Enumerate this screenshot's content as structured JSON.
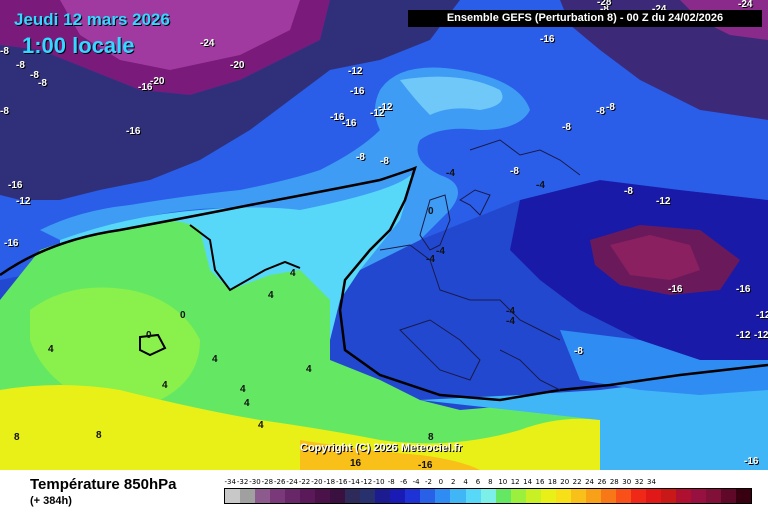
{
  "header": {
    "date": "Jeudi 12 mars 2026",
    "time": "1:00 locale",
    "model": "Ensemble GEFS  (Perturbation 8)  -  00 Z du 24/02/2026"
  },
  "footer": {
    "variable": "Température 850hPa",
    "lead": "(+ 384h)",
    "copyright": "Copyright (C) 2026 Meteociel.fr"
  },
  "scale": {
    "labels": [
      "-34",
      "-32",
      "-30",
      "-28",
      "-26",
      "-24",
      "-22",
      "-20",
      "-18",
      "-16",
      "-14",
      "-12",
      "-10",
      "-8",
      "-6",
      "-4",
      "-2",
      "0",
      "2",
      "4",
      "6",
      "8",
      "10",
      "12",
      "14",
      "16",
      "18",
      "20",
      "22",
      "24",
      "26",
      "28",
      "30",
      "32",
      "34"
    ],
    "colors": [
      "#c8c8c8",
      "#a0a0a0",
      "#8c5a8c",
      "#7a3a7a",
      "#682868",
      "#5a1a5a",
      "#4a1248",
      "#3a1040",
      "#2e2a5a",
      "#28306e",
      "#1c1c90",
      "#1a1ab4",
      "#1e32d6",
      "#2860e8",
      "#2e8cf2",
      "#40b6f6",
      "#58d8f8",
      "#7cf0e8",
      "#64e864",
      "#9af03c",
      "#c8f024",
      "#e8f018",
      "#f8e018",
      "#f8c018",
      "#f8a018",
      "#f87818",
      "#f85018",
      "#f02818",
      "#e01818",
      "#c81818",
      "#b01030",
      "#981040",
      "#801038",
      "#600828",
      "#380010"
    ]
  },
  "map_labels": [
    "-24",
    "-20",
    "-20",
    "-16",
    "-16",
    "-16",
    "-16",
    "-16",
    "-12",
    "-12",
    "-12",
    "-12",
    "-12",
    "-12",
    "-12",
    "-8",
    "-8",
    "-8",
    "-8",
    "-8",
    "-8",
    "-8",
    "-8",
    "-8",
    "-8",
    "-8",
    "-8",
    "-8",
    "-8",
    "-4",
    "-4",
    "-4",
    "-4",
    "-4",
    "-4",
    "0",
    "0",
    "0",
    "4",
    "4",
    "4",
    "4",
    "4",
    "4",
    "4",
    "4",
    "4",
    "8",
    "8",
    "8",
    "16",
    "-16",
    "-16",
    "-16",
    "-16",
    "-16",
    "-16",
    "-16",
    "-24",
    "-24",
    "-28",
    "-12"
  ],
  "colors": {
    "accent_cyan": "#34d7ff",
    "frame": "#000000"
  }
}
